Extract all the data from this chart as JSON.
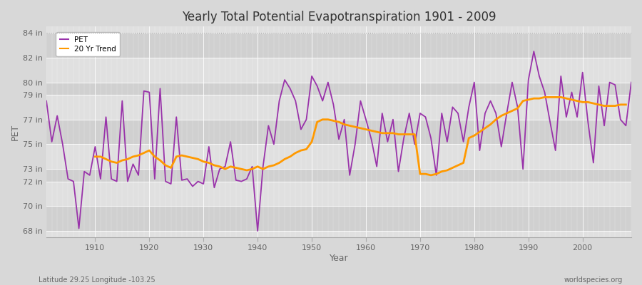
{
  "title": "Yearly Total Potential Evapotranspiration 1901 - 2009",
  "xlabel": "Year",
  "ylabel": "PET",
  "footnote_left": "Latitude 29.25 Longitude -103.25",
  "footnote_right": "worldspecies.org",
  "pet_color": "#9933aa",
  "trend_color": "#ff9900",
  "fig_bg_color": "#d8d8d8",
  "plot_bg_light": "#e0e0e0",
  "plot_bg_dark": "#d0d0d0",
  "ylim_bottom": 67.5,
  "ylim_top": 84.5,
  "yticks": [
    68,
    70,
    72,
    73,
    75,
    77,
    79,
    80,
    82,
    84
  ],
  "ytick_labels": [
    "68 in",
    "70 in",
    "72 in",
    "73 in",
    "75 in",
    "77 in",
    "79 in",
    "80 in",
    "82 in",
    "84 in"
  ],
  "xticks": [
    1910,
    1920,
    1930,
    1940,
    1950,
    1960,
    1970,
    1980,
    1990,
    2000
  ],
  "years": [
    1901,
    1902,
    1903,
    1904,
    1905,
    1906,
    1907,
    1908,
    1909,
    1910,
    1911,
    1912,
    1913,
    1914,
    1915,
    1916,
    1917,
    1918,
    1919,
    1920,
    1921,
    1922,
    1923,
    1924,
    1925,
    1926,
    1927,
    1928,
    1929,
    1930,
    1931,
    1932,
    1933,
    1934,
    1935,
    1936,
    1937,
    1938,
    1939,
    1940,
    1941,
    1942,
    1943,
    1944,
    1945,
    1946,
    1947,
    1948,
    1949,
    1950,
    1951,
    1952,
    1953,
    1954,
    1955,
    1956,
    1957,
    1958,
    1959,
    1960,
    1961,
    1962,
    1963,
    1964,
    1965,
    1966,
    1967,
    1968,
    1969,
    1970,
    1971,
    1972,
    1973,
    1974,
    1975,
    1976,
    1977,
    1978,
    1979,
    1980,
    1981,
    1982,
    1983,
    1984,
    1985,
    1986,
    1987,
    1988,
    1989,
    1990,
    1991,
    1992,
    1993,
    1994,
    1995,
    1996,
    1997,
    1998,
    1999,
    2000,
    2001,
    2002,
    2003,
    2004,
    2005,
    2006,
    2007,
    2008,
    2009
  ],
  "pet": [
    78.5,
    75.2,
    77.3,
    75.0,
    72.2,
    72.0,
    68.2,
    72.8,
    72.5,
    74.8,
    72.2,
    77.2,
    72.2,
    72.0,
    78.5,
    72.0,
    73.4,
    72.5,
    79.3,
    79.2,
    72.2,
    79.5,
    72.0,
    71.8,
    77.2,
    72.1,
    72.2,
    71.6,
    72.0,
    71.8,
    74.8,
    71.5,
    73.0,
    73.2,
    75.2,
    72.1,
    72.0,
    72.2,
    73.2,
    68.0,
    73.2,
    76.5,
    75.0,
    78.5,
    80.2,
    79.5,
    78.5,
    76.2,
    77.0,
    80.5,
    79.7,
    78.5,
    80.0,
    78.2,
    75.4,
    77.0,
    72.5,
    75.0,
    78.5,
    77.0,
    75.4,
    73.2,
    77.5,
    75.2,
    77.0,
    72.8,
    75.5,
    77.5,
    75.0,
    77.5,
    77.2,
    75.5,
    72.5,
    77.5,
    75.2,
    78.0,
    77.5,
    75.2,
    78.0,
    80.0,
    74.5,
    77.5,
    78.5,
    77.5,
    74.8,
    77.5,
    80.0,
    78.0,
    73.0,
    80.2,
    82.5,
    80.5,
    79.2,
    76.8,
    74.5,
    80.5,
    77.2,
    79.2,
    77.2,
    80.8,
    76.8,
    73.5,
    79.7,
    76.5,
    80.0,
    79.8,
    77.0,
    76.5,
    80.0
  ],
  "trend": [
    null,
    null,
    null,
    null,
    null,
    null,
    null,
    null,
    null,
    74.0,
    74.0,
    73.8,
    73.6,
    73.5,
    73.7,
    73.8,
    74.0,
    74.1,
    74.3,
    74.5,
    74.0,
    73.7,
    73.3,
    73.1,
    74.0,
    74.1,
    74.0,
    73.9,
    73.8,
    73.6,
    73.5,
    73.3,
    73.2,
    73.0,
    73.2,
    73.1,
    73.0,
    72.9,
    73.0,
    73.2,
    73.0,
    73.2,
    73.3,
    73.5,
    73.8,
    74.0,
    74.3,
    74.5,
    74.6,
    75.2,
    76.8,
    77.0,
    77.0,
    76.9,
    76.8,
    76.6,
    76.5,
    76.4,
    76.3,
    76.2,
    76.1,
    76.0,
    75.9,
    75.9,
    75.9,
    75.8,
    75.8,
    75.8,
    75.8,
    72.6,
    72.6,
    72.5,
    72.6,
    72.8,
    72.9,
    73.1,
    73.3,
    73.5,
    75.5,
    75.7,
    76.0,
    76.3,
    76.6,
    77.0,
    77.3,
    77.5,
    77.7,
    77.9,
    78.5,
    78.6,
    78.7,
    78.7,
    78.8,
    78.8,
    78.8,
    78.8,
    78.7,
    78.6,
    78.5,
    78.4,
    78.4,
    78.3,
    78.2,
    78.1,
    78.1,
    78.1,
    78.2,
    78.2
  ]
}
